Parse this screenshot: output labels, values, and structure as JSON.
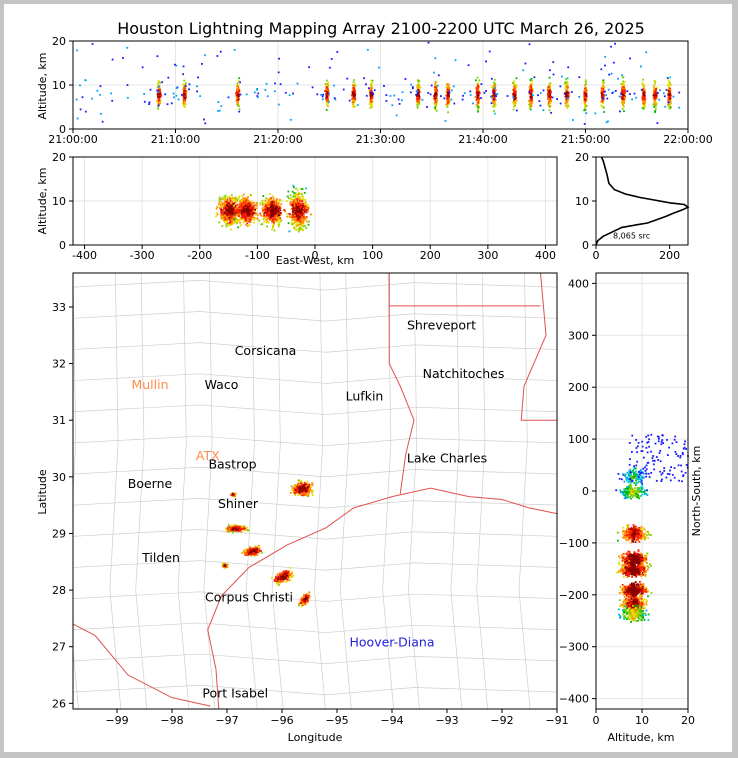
{
  "chart_data": [
    {
      "panel": "time-altitude",
      "type": "scatter",
      "title": "Houston Lightning Mapping Array 2100-2200 UTC March 26, 2025",
      "xlabel": "",
      "ylabel": "Altitude, km",
      "xticks": [
        "21:00:00",
        "21:10:00",
        "21:20:00",
        "21:30:00",
        "21:40:00",
        "21:50:00",
        "22:00:00"
      ],
      "xlim_minutes": [
        0,
        60
      ],
      "ylim": [
        0,
        20
      ],
      "yticks": [
        0,
        10,
        20
      ],
      "grid": true,
      "activity_minutes": [
        8.3,
        10.8,
        16.0,
        24.7,
        27.3,
        29.0,
        33.6,
        35.3,
        36.5,
        39.4,
        41.0,
        43.0,
        44.6,
        46.4,
        48.1,
        49.9,
        51.6,
        53.6,
        55.6,
        56.7,
        58.1
      ]
    },
    {
      "panel": "east-west-altitude",
      "type": "scatter",
      "xlabel": "East-West, km",
      "ylabel": "Altitude, km",
      "xlim": [
        -420,
        420
      ],
      "xticks": [
        -400,
        -300,
        -200,
        -100,
        0,
        100,
        200,
        300,
        400
      ],
      "ylim": [
        0,
        20
      ],
      "yticks": [
        0,
        10,
        20
      ],
      "grid": true,
      "clusters_x_km": [
        -150,
        -120,
        -75,
        -30
      ]
    },
    {
      "panel": "altitude-histogram",
      "type": "line",
      "xlim": [
        0,
        250
      ],
      "xticks": [
        0,
        200
      ],
      "ylim": [
        0,
        20
      ],
      "yticks": [
        0,
        10,
        20
      ],
      "annotation": "8,065 src",
      "profile": [
        [
          0,
          0
        ],
        [
          5,
          1
        ],
        [
          20,
          2
        ],
        [
          45,
          3
        ],
        [
          70,
          4
        ],
        [
          110,
          4.6
        ],
        [
          140,
          5
        ],
        [
          160,
          5.6
        ],
        [
          190,
          6.5
        ],
        [
          210,
          7.2
        ],
        [
          235,
          8
        ],
        [
          250,
          8.6
        ],
        [
          240,
          9.2
        ],
        [
          200,
          9.6
        ],
        [
          160,
          10.2
        ],
        [
          120,
          10.8
        ],
        [
          80,
          11.6
        ],
        [
          50,
          12.6
        ],
        [
          35,
          14
        ],
        [
          30,
          16
        ],
        [
          25,
          17.5
        ],
        [
          20,
          19
        ],
        [
          15,
          20
        ]
      ]
    },
    {
      "panel": "plan-view",
      "type": "scatter",
      "xlabel": "Longitude",
      "ylabel": "Latitude",
      "xlim": [
        -99.8,
        -91
      ],
      "ylim": [
        25.9,
        33.6
      ],
      "xticks": [
        -99,
        -98,
        -97,
        -96,
        -95,
        -94,
        -93,
        -92,
        -91
      ],
      "yticks": [
        26,
        27,
        28,
        29,
        30,
        31,
        32,
        33
      ],
      "cities": [
        {
          "name": "Shreveport",
          "lon": -93.1,
          "lat": 32.6,
          "color": "#000000"
        },
        {
          "name": "Corsicana",
          "lon": -96.3,
          "lat": 32.15,
          "color": "#000000"
        },
        {
          "name": "Natchitoches",
          "lon": -92.7,
          "lat": 31.75,
          "color": "#000000"
        },
        {
          "name": "Mullin",
          "lon": -98.4,
          "lat": 31.55,
          "color": "#ff8c4a"
        },
        {
          "name": "Waco",
          "lon": -97.1,
          "lat": 31.55,
          "color": "#000000"
        },
        {
          "name": "Lufkin",
          "lon": -94.5,
          "lat": 31.35,
          "color": "#000000"
        },
        {
          "name": "Lake Charles",
          "lon": -93.0,
          "lat": 30.25,
          "color": "#000000"
        },
        {
          "name": "ATX",
          "lon": -97.35,
          "lat": 30.3,
          "color": "#ff8c4a"
        },
        {
          "name": "Bastrop",
          "lon": -96.9,
          "lat": 30.15,
          "color": "#000000"
        },
        {
          "name": "Boerne",
          "lon": -98.4,
          "lat": 29.8,
          "color": "#000000"
        },
        {
          "name": "Shiner",
          "lon": -96.8,
          "lat": 29.45,
          "color": "#000000"
        },
        {
          "name": "Tilden",
          "lon": -98.2,
          "lat": 28.5,
          "color": "#000000"
        },
        {
          "name": "Corpus Christi",
          "lon": -96.6,
          "lat": 27.8,
          "color": "#000000"
        },
        {
          "name": "Hoover-Diana",
          "lon": -94.0,
          "lat": 27.0,
          "color": "#1f1fe0"
        },
        {
          "name": "Port Isabel",
          "lon": -96.85,
          "lat": 26.1,
          "color": "#000000"
        }
      ]
    },
    {
      "panel": "altitude-north-south",
      "type": "scatter",
      "xlabel": "Altitude, km",
      "ylabel": "North-South, km",
      "xlim": [
        0,
        20
      ],
      "xticks": [
        0,
        10,
        20
      ],
      "ylim": [
        -420,
        420
      ],
      "yticks": [
        -400,
        -300,
        -200,
        -100,
        0,
        100,
        200,
        300,
        400
      ],
      "grid": true
    }
  ]
}
